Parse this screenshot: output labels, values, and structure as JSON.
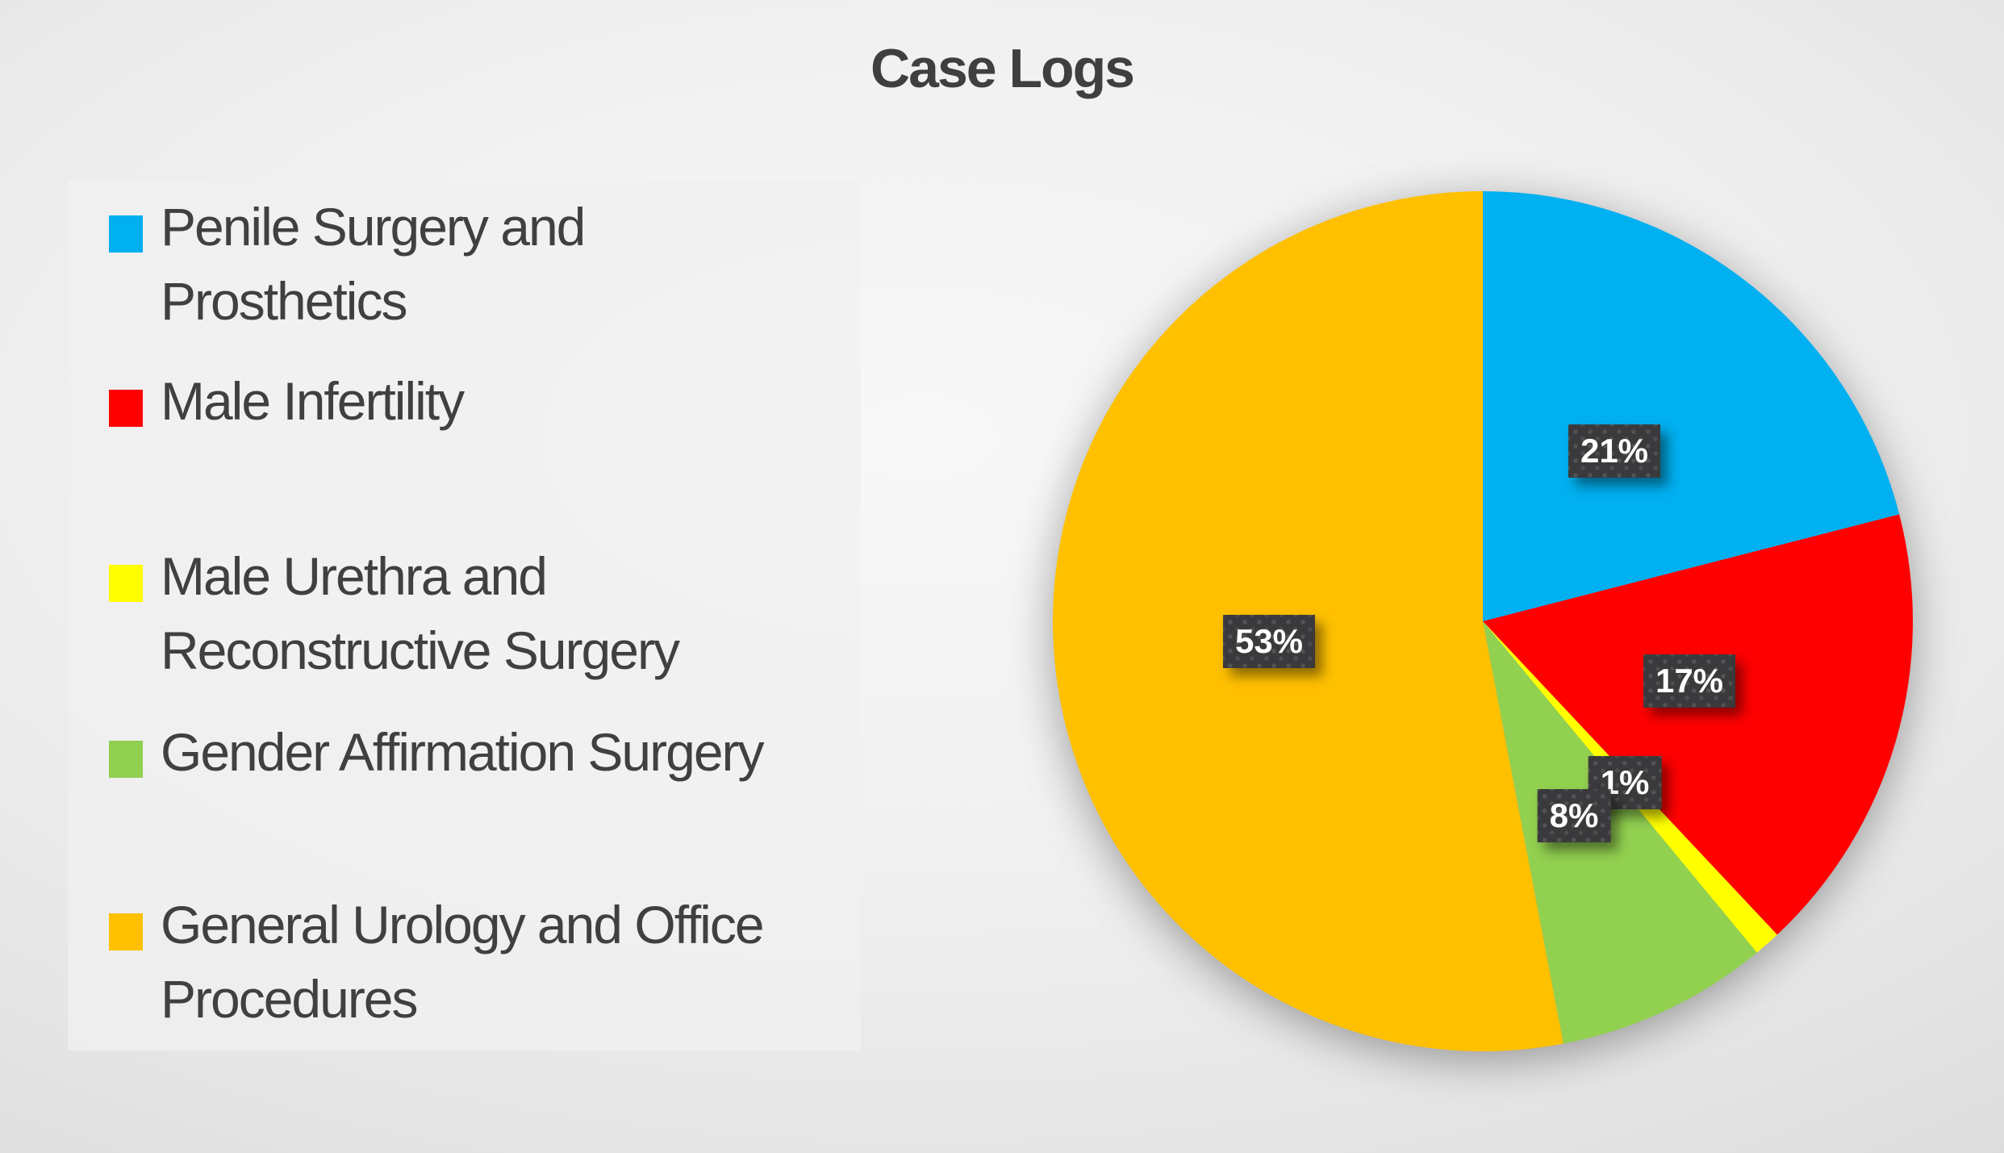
{
  "chart_data": {
    "type": "pie",
    "title": "Case Logs",
    "legend_position": "left",
    "start_angle_deg": 0,
    "direction": "clockwise",
    "total": 100,
    "slices": [
      {
        "label": "Penile Surgery and Prosthetics",
        "lines": [
          "Penile Surgery and",
          "Prosthetics"
        ],
        "value": 21,
        "pct_label": "21%",
        "color": "#00B0F0"
      },
      {
        "label": "Male Infertility",
        "lines": [
          "Male Infertility"
        ],
        "value": 17,
        "pct_label": "17%",
        "color": "#FF0000"
      },
      {
        "label": "Male Urethra and Reconstructive Surgery",
        "lines": [
          "Male Urethra and",
          "Reconstructive Surgery"
        ],
        "value": 1,
        "pct_label": "1%",
        "color": "#FFFF00"
      },
      {
        "label": "Gender Affirmation Surgery",
        "lines": [
          "Gender Affirmation Surgery"
        ],
        "value": 8,
        "pct_label": "8%",
        "color": "#92D050"
      },
      {
        "label": "General Urology and Office Procedures",
        "lines": [
          "General Urology and Office",
          "Procedures"
        ],
        "value": 53,
        "pct_label": "53%",
        "color": "#FFC000"
      }
    ],
    "data_labels": {
      "position": "inside-at-half-radius",
      "box_color": "#3A3A3C",
      "text_color": "#FFFFFF"
    },
    "title_color": "#3F3F3F",
    "legend_text_color": "#404040"
  }
}
